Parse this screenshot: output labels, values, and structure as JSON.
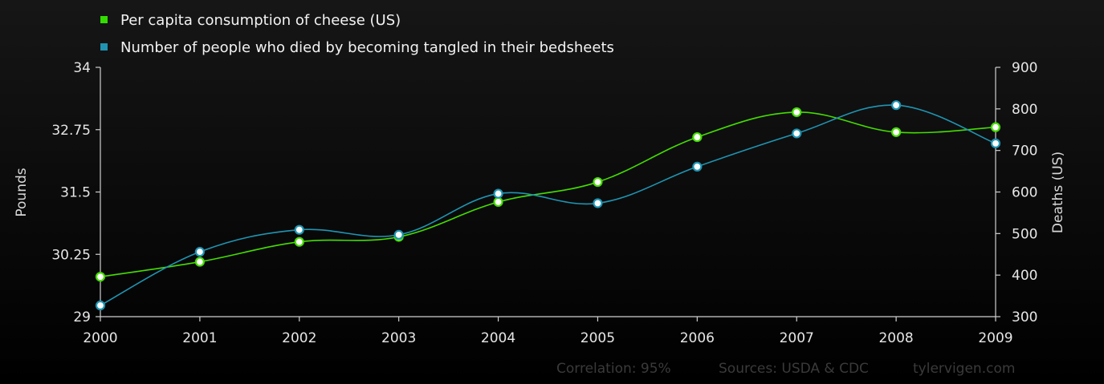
{
  "chart_data": {
    "type": "line",
    "categories": [
      "2000",
      "2001",
      "2002",
      "2003",
      "2004",
      "2005",
      "2006",
      "2007",
      "2008",
      "2009"
    ],
    "series": [
      {
        "name": "Per capita consumption of cheese (US)",
        "axis": "left",
        "color": "#44dd00",
        "values": [
          29.8,
          30.1,
          30.5,
          30.6,
          31.3,
          31.7,
          32.6,
          33.1,
          32.7,
          32.8
        ]
      },
      {
        "name": "Number of people who died by becoming tangled in their bedsheets",
        "axis": "right",
        "color": "#1f95b3",
        "values": [
          327,
          456,
          509,
          497,
          596,
          573,
          661,
          741,
          809,
          717
        ]
      }
    ],
    "yleft": {
      "label": "Pounds",
      "ylim": [
        29,
        34
      ],
      "ticks": [
        "29",
        "30.25",
        "31.5",
        "32.75",
        "34"
      ]
    },
    "yright": {
      "label": "Deaths (US)",
      "ylim": [
        300,
        900
      ],
      "ticks": [
        "300",
        "400",
        "500",
        "600",
        "700",
        "800",
        "900"
      ]
    },
    "legend_position": "top-left",
    "grid": false
  },
  "footer": {
    "correlation": "Correlation: 95%",
    "sources": "Sources: USDA & CDC",
    "site": "tylervigen.com"
  }
}
